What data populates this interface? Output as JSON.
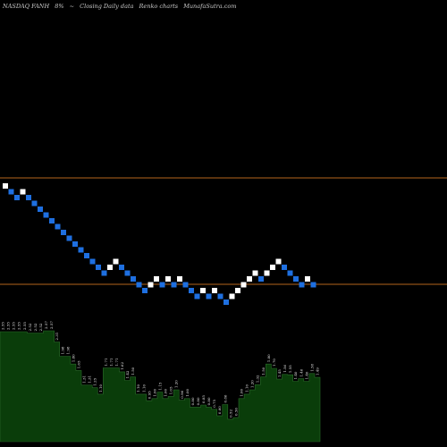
{
  "header": {
    "symbol": "NASDAQ FANH",
    "change": "8%",
    "arrow": "~",
    "description": "Closing Daily data",
    "chart_kind": "Renko charts",
    "site": "MunafaSutra.com"
  },
  "colors": {
    "background": "#000000",
    "up_brick": "#ffffff",
    "down_brick": "#1e6fe0",
    "level_line": "#b5651d",
    "volume_fill": "#0a3d0a",
    "volume_stroke": "#2a6a2a"
  },
  "chart_data": {
    "type": "renko",
    "bricks": [
      {
        "dir": "up",
        "step": 0
      },
      {
        "dir": "down",
        "step": -1
      },
      {
        "dir": "down",
        "step": -2
      },
      {
        "dir": "up",
        "step": -1
      },
      {
        "dir": "down",
        "step": -2
      },
      {
        "dir": "down",
        "step": -3
      },
      {
        "dir": "down",
        "step": -4
      },
      {
        "dir": "down",
        "step": -5
      },
      {
        "dir": "down",
        "step": -6
      },
      {
        "dir": "down",
        "step": -7
      },
      {
        "dir": "down",
        "step": -8
      },
      {
        "dir": "down",
        "step": -9
      },
      {
        "dir": "down",
        "step": -10
      },
      {
        "dir": "down",
        "step": -11
      },
      {
        "dir": "down",
        "step": -12
      },
      {
        "dir": "down",
        "step": -13
      },
      {
        "dir": "down",
        "step": -14
      },
      {
        "dir": "down",
        "step": -15
      },
      {
        "dir": "up",
        "step": -14
      },
      {
        "dir": "up",
        "step": -13
      },
      {
        "dir": "down",
        "step": -14
      },
      {
        "dir": "down",
        "step": -15
      },
      {
        "dir": "down",
        "step": -16
      },
      {
        "dir": "down",
        "step": -17
      },
      {
        "dir": "down",
        "step": -18
      },
      {
        "dir": "up",
        "step": -17
      },
      {
        "dir": "up",
        "step": -16
      },
      {
        "dir": "down",
        "step": -17
      },
      {
        "dir": "up",
        "step": -16
      },
      {
        "dir": "down",
        "step": -17
      },
      {
        "dir": "up",
        "step": -16
      },
      {
        "dir": "down",
        "step": -17
      },
      {
        "dir": "down",
        "step": -18
      },
      {
        "dir": "down",
        "step": -19
      },
      {
        "dir": "up",
        "step": -18
      },
      {
        "dir": "down",
        "step": -19
      },
      {
        "dir": "up",
        "step": -18
      },
      {
        "dir": "down",
        "step": -19
      },
      {
        "dir": "down",
        "step": -20
      },
      {
        "dir": "up",
        "step": -19
      },
      {
        "dir": "up",
        "step": -18
      },
      {
        "dir": "up",
        "step": -17
      },
      {
        "dir": "up",
        "step": -16
      },
      {
        "dir": "up",
        "step": -15
      },
      {
        "dir": "down",
        "step": -16
      },
      {
        "dir": "up",
        "step": -15
      },
      {
        "dir": "up",
        "step": -14
      },
      {
        "dir": "up",
        "step": -13
      },
      {
        "dir": "down",
        "step": -14
      },
      {
        "dir": "down",
        "step": -15
      },
      {
        "dir": "down",
        "step": -16
      },
      {
        "dir": "down",
        "step": -17
      },
      {
        "dir": "up",
        "step": -16
      },
      {
        "dir": "down",
        "step": -17
      }
    ],
    "reference_lines": [
      "upper",
      "lower"
    ],
    "volume": {
      "values": [
        2.55,
        2.55,
        2.55,
        2.55,
        2.55,
        2.52,
        2.52,
        2.52,
        2.57,
        2.57,
        2.31,
        1.98,
        1.98,
        1.8,
        1.65,
        1.31,
        1.31,
        1.25,
        1.1,
        1.71,
        1.71,
        1.71,
        1.62,
        1.42,
        1.5,
        1.1,
        1.1,
        0.95,
        1.0,
        1.15,
        1.0,
        1.05,
        1.2,
        0.96,
        1.0,
        0.8,
        0.8,
        0.85,
        0.8,
        0.75,
        0.6,
        0.86,
        0.52,
        0.56,
        1.0,
        1.1,
        1.2,
        1.32,
        1.5,
        1.8,
        1.7,
        1.45,
        1.56,
        1.55,
        1.4,
        1.46,
        1.4,
        1.58,
        1.49
      ]
    }
  }
}
